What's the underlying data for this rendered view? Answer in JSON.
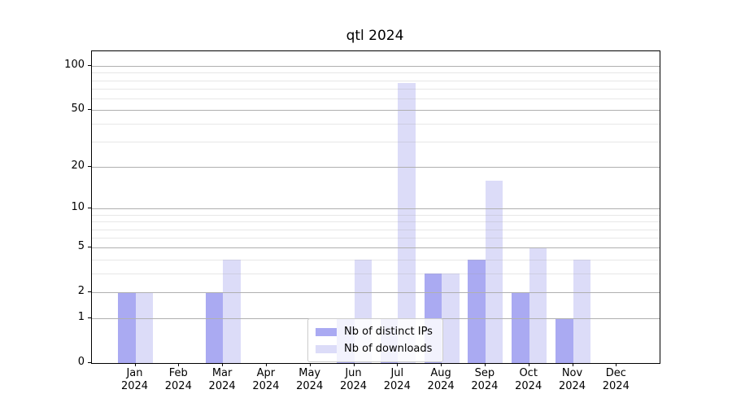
{
  "title": "qtl 2024",
  "chart_data": {
    "type": "bar",
    "title": "qtl 2024",
    "categories": [
      "Jan 2024",
      "Feb 2024",
      "Mar 2024",
      "Apr 2024",
      "May 2024",
      "Jun 2024",
      "Jul 2024",
      "Aug 2024",
      "Sep 2024",
      "Oct 2024",
      "Nov 2024",
      "Dec 2024"
    ],
    "series": [
      {
        "name": "Nb of distinct IPs",
        "color": "#aaaaf2",
        "values": [
          2,
          0,
          2,
          0,
          0,
          1,
          1,
          3,
          4,
          2,
          1,
          0
        ]
      },
      {
        "name": "Nb of downloads",
        "color": "#dcdcf8",
        "values": [
          2,
          0,
          4,
          0,
          0,
          4,
          77,
          3,
          16,
          5,
          4,
          0
        ]
      }
    ],
    "xlabel": "",
    "ylabel": "",
    "yscale": "log1p",
    "ylim": [
      0,
      125
    ],
    "yticks": [
      0,
      1,
      2,
      5,
      10,
      20,
      50,
      100
    ],
    "minor_yticks": [
      3,
      4,
      6,
      7,
      8,
      9,
      30,
      40,
      60,
      70,
      80,
      90
    ],
    "grid": true,
    "grid_on_top_of_bars": true,
    "legend_position": "lower-center"
  },
  "colors": {
    "background": "#ffffff",
    "axis": "#000000",
    "major_grid": "#b0b0b0",
    "minor_grid": "#e7e7e7",
    "legend_border": "#cccccc"
  }
}
